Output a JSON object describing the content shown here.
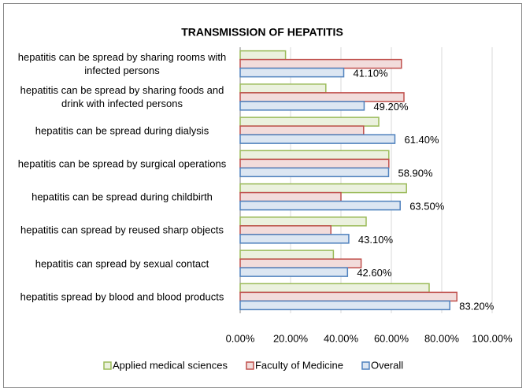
{
  "chart_data": {
    "type": "bar",
    "orientation": "horizontal",
    "title": "TRANSMISSION OF HEPATITIS",
    "categories": [
      "hepatitis can be spread by sharing rooms with infected persons",
      "hepatitis can be spread by sharing foods and drink with infected persons",
      "hepatitis can be spread during dialysis",
      "hepatitis can be spread by surgical operations",
      "hepatitis can be spread during childbirth",
      "hepatitis can spread by reused sharp objects",
      "hepatitis can spread by sexual contact",
      "hepatitis spread by blood and blood products"
    ],
    "series": [
      {
        "name": "Applied medical sciences",
        "color": "#9bbb59",
        "values": [
          18,
          34,
          55,
          59,
          66,
          50,
          37,
          75
        ]
      },
      {
        "name": "Faculty of Medicine",
        "color": "#c0504d",
        "values": [
          64,
          65,
          49,
          59,
          40,
          36,
          48,
          86
        ]
      },
      {
        "name": "Overall",
        "color": "#4f81bd",
        "values": [
          41.1,
          49.2,
          61.4,
          58.9,
          63.5,
          43.1,
          42.6,
          83.2
        ],
        "value_labels": [
          "41.10%",
          "49.20%",
          "61.40%",
          "58.90%",
          "63.50%",
          "43.10%",
          "42.60%",
          "83.20%"
        ]
      }
    ],
    "xlim": [
      0,
      100
    ],
    "xticks": [
      {
        "value": 0,
        "label": "0.00%"
      },
      {
        "value": 20,
        "label": "20.00%"
      },
      {
        "value": 40,
        "label": "40.00%"
      },
      {
        "value": 60,
        "label": "60.00%"
      },
      {
        "value": 80,
        "label": "80.00%"
      },
      {
        "value": 100,
        "label": "100.00%"
      }
    ],
    "grid": true,
    "legend": "bottom"
  }
}
